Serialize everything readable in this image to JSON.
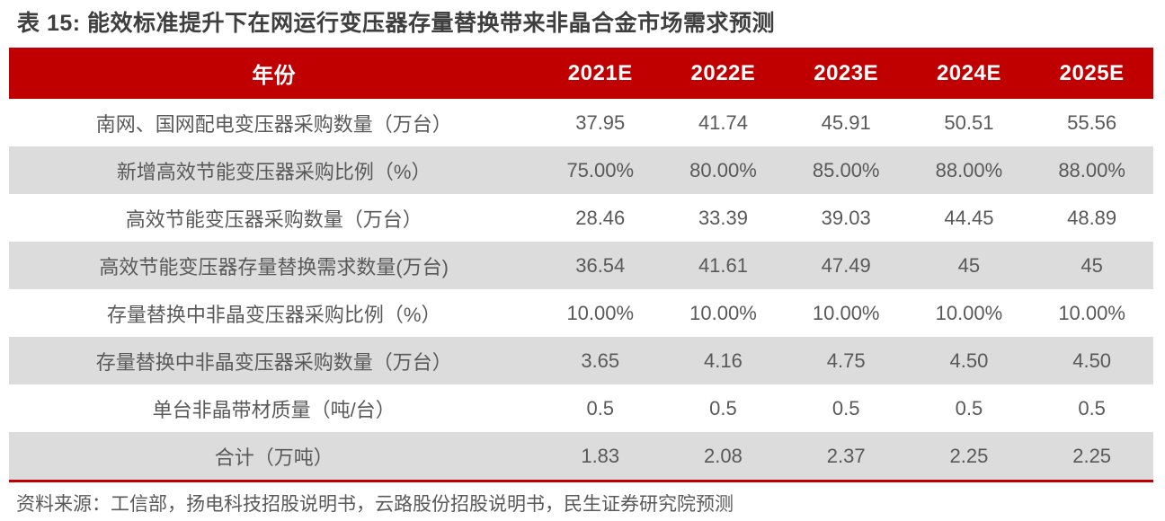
{
  "title": "表 15: 能效标准提升下在网运行变压器存量替换带来非晶合金市场需求预测",
  "source_note": "资料来源：工信部，扬电科技招股说明书，云路股份招股说明书，民生证券研究院预测",
  "colors": {
    "header_red": "#c00000",
    "stripe_gray": "#dcdcdc",
    "cell_text": "#595959",
    "title_text": "#3f3f3f"
  },
  "chart_data": {
    "type": "table",
    "header": [
      "年份",
      "2021E",
      "2022E",
      "2023E",
      "2024E",
      "2025E"
    ],
    "rows": [
      {
        "label": "南网、国网配电变压器采购数量（万台）",
        "values": [
          "37.95",
          "41.74",
          "45.91",
          "50.51",
          "55.56"
        ]
      },
      {
        "label": "新增高效节能变压器采购比例（%）",
        "values": [
          "75.00%",
          "80.00%",
          "85.00%",
          "88.00%",
          "88.00%"
        ]
      },
      {
        "label": "高效节能变压器采购数量（万台）",
        "values": [
          "28.46",
          "33.39",
          "39.03",
          "44.45",
          "48.89"
        ]
      },
      {
        "label": "高效节能变压器存量替换需求数量(万台)",
        "values": [
          "36.54",
          "41.61",
          "47.49",
          "45",
          "45"
        ]
      },
      {
        "label": "存量替换中非晶变压器采购比例（%）",
        "values": [
          "10.00%",
          "10.00%",
          "10.00%",
          "10.00%",
          "10.00%"
        ]
      },
      {
        "label": "存量替换中非晶变压器采购数量（万台）",
        "values": [
          "3.65",
          "4.16",
          "4.75",
          "4.50",
          "4.50"
        ]
      },
      {
        "label": "单台非晶带材质量（吨/台）",
        "values": [
          "0.5",
          "0.5",
          "0.5",
          "0.5",
          "0.5"
        ]
      },
      {
        "label": "合计（万吨）",
        "values": [
          "1.83",
          "2.08",
          "2.37",
          "2.25",
          "2.25"
        ]
      }
    ]
  }
}
